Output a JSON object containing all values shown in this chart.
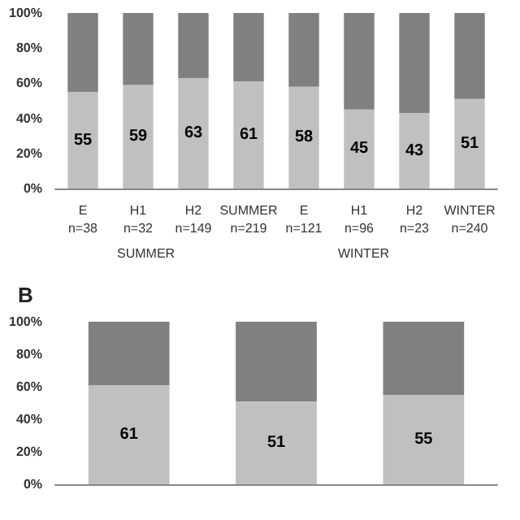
{
  "chart_data": [
    {
      "type": "bar",
      "stacked": true,
      "categories": [
        "E\nn=38",
        "H1\nn=32",
        "H2\nn=149",
        "SUMMER\nn=219",
        "E\nn=121",
        "H1\nn=96",
        "H2\nn=23",
        "WINTER\nn=240"
      ],
      "series": [
        {
          "color": "#c0c0c0",
          "values": [
            55,
            59,
            63,
            61,
            58,
            45,
            43,
            51
          ],
          "value_labels": [
            "55",
            "59",
            "63",
            "61",
            "58",
            "45",
            "43",
            "51"
          ]
        },
        {
          "color": "#808080",
          "values": [
            45,
            41,
            37,
            39,
            42,
            55,
            57,
            49
          ]
        }
      ],
      "ylim": [
        0,
        100
      ],
      "yticks": [
        {
          "value": 0,
          "label": "0%"
        },
        {
          "value": 20,
          "label": "20%"
        },
        {
          "value": 40,
          "label": "40%"
        },
        {
          "value": 60,
          "label": "60%"
        },
        {
          "value": 80,
          "label": "80%"
        },
        {
          "value": 100,
          "label": "100%"
        }
      ],
      "annotations": [
        "SUMMER",
        "WINTER"
      ],
      "grid": false
    },
    {
      "type": "bar",
      "stacked": true,
      "title": "B",
      "categories": [
        null,
        null,
        null
      ],
      "series": [
        {
          "color": "#c0c0c0",
          "values": [
            61,
            51,
            55
          ],
          "value_labels": [
            "61",
            "51",
            "55"
          ]
        },
        {
          "color": "#808080",
          "values": [
            39,
            49,
            45
          ]
        }
      ],
      "ylim": [
        0,
        100
      ],
      "yticks": [
        {
          "value": 0,
          "label": "0%"
        },
        {
          "value": 20,
          "label": "20%"
        },
        {
          "value": 40,
          "label": "40%"
        },
        {
          "value": 60,
          "label": "60%"
        },
        {
          "value": 80,
          "label": "80%"
        },
        {
          "value": 100,
          "label": "100%"
        }
      ],
      "grid": false
    }
  ]
}
